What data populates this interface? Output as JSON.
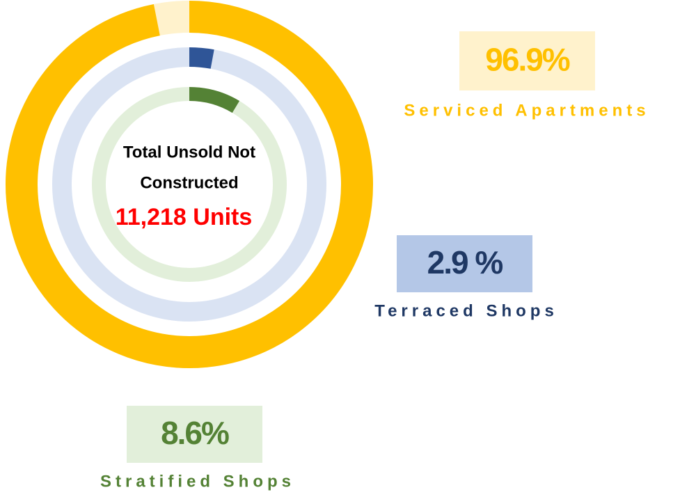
{
  "chart_data": {
    "type": "radial_bar",
    "title": [
      "Total Unsold Not",
      "Constructed"
    ],
    "subtitle": "11,218 Units",
    "categories": [
      "Serviced Apartments",
      "Terraced Shops",
      "Stratified Shops"
    ],
    "values": [
      96.9,
      2.9,
      8.6
    ],
    "value_labels": [
      "96.9%",
      "2.9 %",
      "8.6%"
    ],
    "colors": [
      "#ffc000",
      "#2f5597",
      "#548235"
    ],
    "track_colors": [
      "#fff2cc",
      "#dae3f3",
      "#e2efda"
    ],
    "label_box_colors": [
      "#fff2cc",
      "#b4c7e7",
      "#e2efda"
    ],
    "label_text_colors": [
      "#ffc000",
      "#1f3864",
      "#548235"
    ],
    "ylim": [
      0,
      100
    ]
  }
}
